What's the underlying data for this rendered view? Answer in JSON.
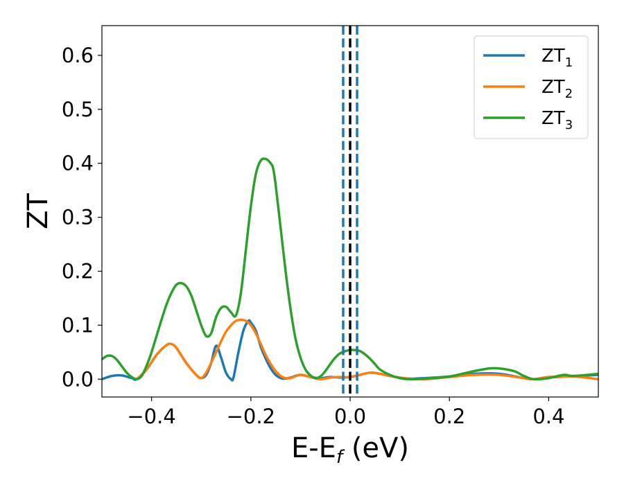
{
  "chart_data": {
    "type": "line",
    "title": "",
    "xlabel": {
      "main": "E-E",
      "sub": "f",
      "rest": " (eV)"
    },
    "ylabel": "ZT",
    "xlim": [
      -0.5,
      0.5
    ],
    "ylim": [
      -0.033,
      0.655
    ],
    "x_ticks": [
      {
        "value": -0.4,
        "label": "−0.4"
      },
      {
        "value": -0.2,
        "label": "−0.2"
      },
      {
        "value": 0.0,
        "label": "0.0"
      },
      {
        "value": 0.2,
        "label": "0.2"
      },
      {
        "value": 0.4,
        "label": "0.4"
      }
    ],
    "y_ticks": [
      {
        "value": 0.0,
        "label": "0.0"
      },
      {
        "value": 0.1,
        "label": "0.1"
      },
      {
        "value": 0.2,
        "label": "0.2"
      },
      {
        "value": 0.3,
        "label": "0.3"
      },
      {
        "value": 0.4,
        "label": "0.4"
      },
      {
        "value": 0.5,
        "label": "0.5"
      },
      {
        "value": 0.6,
        "label": "0.6"
      }
    ],
    "grid": false,
    "legend_position": "top-right",
    "series": [
      {
        "name": "ZT",
        "name_sub": "1",
        "color": "#1f77b4",
        "x": [
          -0.5,
          -0.48,
          -0.46,
          -0.44,
          -0.43,
          -0.41,
          -0.39,
          -0.37,
          -0.36,
          -0.35,
          -0.33,
          -0.31,
          -0.3,
          -0.29,
          -0.28,
          -0.27,
          -0.26,
          -0.25,
          -0.24,
          -0.235,
          -0.225,
          -0.215,
          -0.205,
          -0.2,
          -0.19,
          -0.18,
          -0.17,
          -0.16,
          -0.15,
          -0.14,
          -0.13,
          -0.12,
          -0.1,
          -0.08,
          -0.06,
          -0.04,
          -0.02,
          0.0,
          0.02,
          0.04,
          0.06,
          0.08,
          0.1,
          0.12,
          0.15,
          0.2,
          0.25,
          0.3,
          0.35,
          0.37,
          0.4,
          0.45,
          0.5
        ],
        "y": [
          0.0,
          0.006,
          0.007,
          0.002,
          0.0,
          0.018,
          0.045,
          0.063,
          0.065,
          0.058,
          0.03,
          0.008,
          0.002,
          0.008,
          0.03,
          0.062,
          0.04,
          0.012,
          0.0,
          0.003,
          0.05,
          0.09,
          0.108,
          0.105,
          0.09,
          0.06,
          0.038,
          0.02,
          0.008,
          0.002,
          0.001,
          0.003,
          0.008,
          0.004,
          0.002,
          0.004,
          0.003,
          0.004,
          0.008,
          0.012,
          0.01,
          0.006,
          0.003,
          0.001,
          0.002,
          0.005,
          0.01,
          0.01,
          0.002,
          0.0,
          0.003,
          0.006,
          0.008
        ]
      },
      {
        "name": "ZT",
        "name_sub": "2",
        "color": "#ff7f0e",
        "x": [
          -0.43,
          -0.41,
          -0.39,
          -0.37,
          -0.36,
          -0.35,
          -0.33,
          -0.31,
          -0.3,
          -0.29,
          -0.28,
          -0.27,
          -0.26,
          -0.25,
          -0.24,
          -0.23,
          -0.22,
          -0.21,
          -0.2,
          -0.19,
          -0.18,
          -0.17,
          -0.16,
          -0.15,
          -0.14,
          -0.13,
          -0.12,
          -0.1,
          -0.08,
          -0.06,
          -0.04,
          -0.02,
          0.0,
          0.02,
          0.04,
          0.06,
          0.08,
          0.1,
          0.12,
          0.15,
          0.2,
          0.25,
          0.3,
          0.35,
          0.37,
          0.4,
          0.45,
          0.5
        ],
        "y": [
          0.0,
          0.018,
          0.045,
          0.063,
          0.065,
          0.058,
          0.03,
          0.008,
          0.002,
          0.012,
          0.03,
          0.05,
          0.07,
          0.088,
          0.1,
          0.108,
          0.11,
          0.108,
          0.1,
          0.085,
          0.065,
          0.045,
          0.028,
          0.015,
          0.006,
          0.002,
          0.002,
          0.008,
          0.004,
          0.0,
          0.003,
          0.004,
          0.004,
          0.008,
          0.012,
          0.01,
          0.006,
          0.003,
          0.001,
          0.0,
          0.004,
          0.008,
          0.008,
          0.002,
          0.0,
          0.004,
          0.005,
          0.0
        ]
      },
      {
        "name": "ZT",
        "name_sub": "3",
        "color": "#2ca02c",
        "x": [
          -0.5,
          -0.49,
          -0.48,
          -0.47,
          -0.46,
          -0.45,
          -0.44,
          -0.43,
          -0.42,
          -0.41,
          -0.4,
          -0.39,
          -0.38,
          -0.37,
          -0.36,
          -0.35,
          -0.34,
          -0.33,
          -0.32,
          -0.31,
          -0.3,
          -0.29,
          -0.28,
          -0.27,
          -0.26,
          -0.25,
          -0.24,
          -0.23,
          -0.22,
          -0.21,
          -0.2,
          -0.19,
          -0.18,
          -0.17,
          -0.16,
          -0.155,
          -0.15,
          -0.14,
          -0.13,
          -0.12,
          -0.11,
          -0.1,
          -0.09,
          -0.08,
          -0.07,
          -0.06,
          -0.05,
          -0.04,
          -0.03,
          -0.02,
          -0.01,
          0.0,
          0.01,
          0.02,
          0.03,
          0.04,
          0.05,
          0.06,
          0.08,
          0.1,
          0.12,
          0.15,
          0.2,
          0.25,
          0.28,
          0.3,
          0.33,
          0.35,
          0.37,
          0.4,
          0.43,
          0.45,
          0.5
        ],
        "y": [
          0.037,
          0.043,
          0.043,
          0.036,
          0.024,
          0.012,
          0.004,
          0.0,
          0.006,
          0.025,
          0.05,
          0.08,
          0.11,
          0.138,
          0.16,
          0.175,
          0.178,
          0.172,
          0.155,
          0.128,
          0.1,
          0.08,
          0.085,
          0.115,
          0.132,
          0.134,
          0.124,
          0.118,
          0.16,
          0.24,
          0.32,
          0.38,
          0.405,
          0.408,
          0.4,
          0.39,
          0.36,
          0.28,
          0.2,
          0.13,
          0.075,
          0.04,
          0.018,
          0.007,
          0.002,
          0.005,
          0.015,
          0.028,
          0.04,
          0.048,
          0.052,
          0.054,
          0.054,
          0.052,
          0.046,
          0.038,
          0.028,
          0.018,
          0.008,
          0.002,
          0.0,
          0.001,
          0.005,
          0.015,
          0.02,
          0.02,
          0.015,
          0.006,
          0.0,
          0.002,
          0.008,
          0.006,
          0.01
        ]
      }
    ],
    "vlines": [
      {
        "x": -0.014,
        "color": "#1f77b4",
        "style": "dashed"
      },
      {
        "x": 0.0,
        "color": "#000000",
        "style": "dashed"
      },
      {
        "x": 0.014,
        "color": "#1f77b4",
        "style": "dashed"
      }
    ]
  }
}
